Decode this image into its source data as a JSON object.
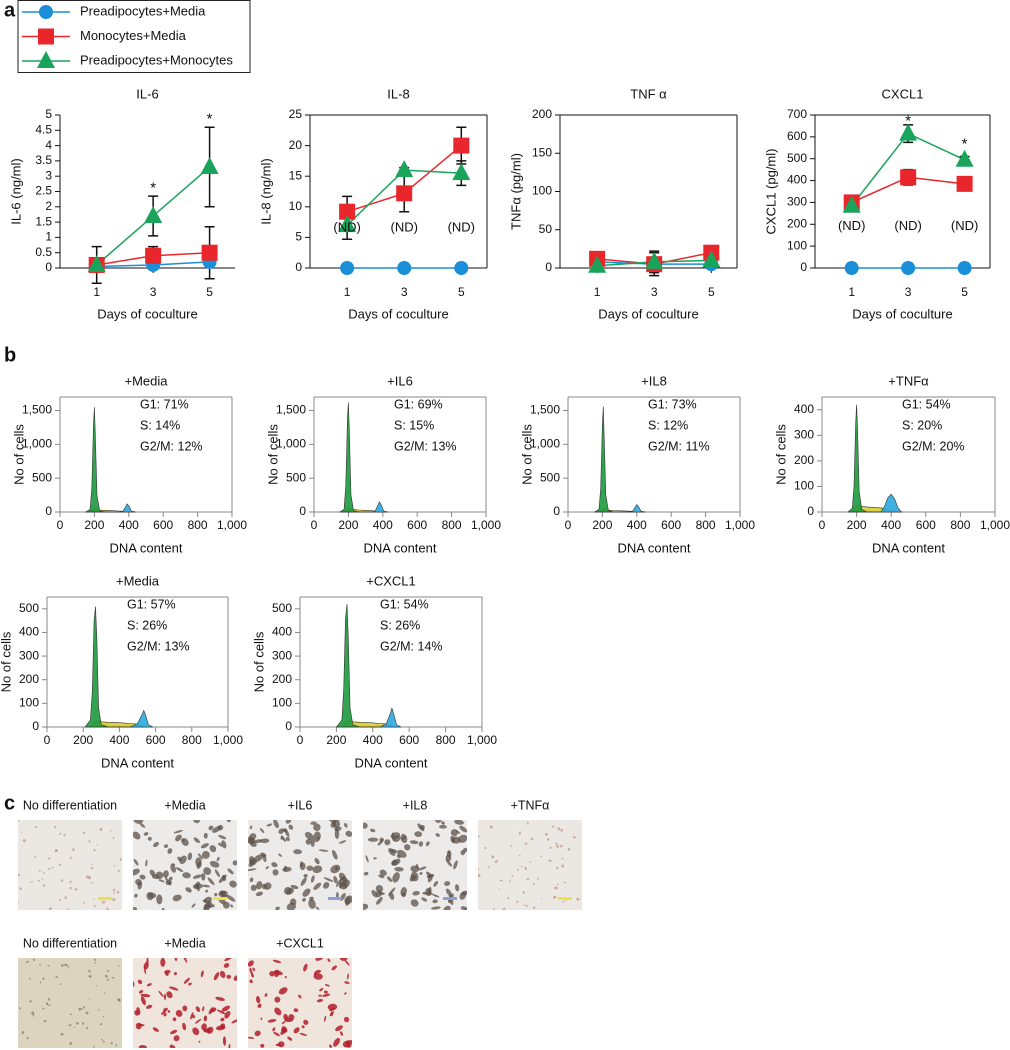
{
  "panels": [
    "a",
    "b",
    "c"
  ],
  "chart_data": [
    {
      "type": "line",
      "title": "IL-6",
      "ylabel": "IL-6 (ng/ml)",
      "xlabel": "Days of coculture",
      "frame": false,
      "x": [
        1,
        3,
        5
      ],
      "xlim": [
        -0.3,
        5.9
      ],
      "xticks": [
        1,
        3,
        5
      ],
      "ylim": [
        0,
        5
      ],
      "yticks": [
        0,
        0.5,
        1,
        1.5,
        2,
        2.5,
        3,
        3.5,
        4,
        4.5,
        5
      ],
      "series": [
        {
          "name": "Preadipocytes+Media",
          "color": "#1b8ed8",
          "marker": "circle",
          "values": [
            0.05,
            0.1,
            0.2
          ]
        },
        {
          "name": "Monocytes+Media",
          "color": "#e8262b",
          "marker": "square",
          "values": [
            0.1,
            0.4,
            0.5
          ],
          "errors": [
            0.6,
            0.3,
            0.85
          ]
        },
        {
          "name": "Preadipocytes+Monocytes",
          "color": "#1aa35a",
          "marker": "triangle",
          "values": [
            0.1,
            1.7,
            3.3
          ],
          "errors": [
            0.1,
            0.65,
            1.3
          ]
        }
      ],
      "annotations": [
        {
          "text": "*",
          "x": 3,
          "y": 2.6
        },
        {
          "text": "*",
          "x": 5,
          "y": 4.85
        }
      ]
    },
    {
      "type": "line",
      "title": "IL-8",
      "ylabel": "IL-8 (ng/ml)",
      "xlabel": "Days of coculture",
      "frame": true,
      "x": [
        1,
        3,
        5
      ],
      "xlim": [
        -0.3,
        5.9
      ],
      "xticks": [
        1,
        3,
        5
      ],
      "ylim": [
        0,
        25
      ],
      "yticks": [
        0,
        5,
        10,
        15,
        20,
        25
      ],
      "series": [
        {
          "name": "Preadipocytes+Media",
          "color": "#1b8ed8",
          "marker": "circle",
          "values": [
            0,
            0,
            0
          ]
        },
        {
          "name": "Monocytes+Media",
          "color": "#e8262b",
          "marker": "square",
          "values": [
            9.2,
            12.2,
            20
          ],
          "errors": [
            2.5,
            3,
            3
          ]
        },
        {
          "name": "Preadipocytes+Monocytes",
          "color": "#1aa35a",
          "marker": "triangle",
          "values": [
            7,
            16,
            15.5
          ],
          "errors": [
            2.3,
            0.4,
            2
          ]
        }
      ],
      "annotations": [
        {
          "text": "(ND)",
          "x": 1,
          "y": 6.5
        },
        {
          "text": "(ND)",
          "x": 3,
          "y": 6.5
        },
        {
          "text": "(ND)",
          "x": 5,
          "y": 6.5
        }
      ]
    },
    {
      "type": "line",
      "title": "TNF α",
      "ylabel": "TNFα (pg/ml)",
      "xlabel": "Days of coculture",
      "frame": true,
      "x": [
        1,
        3,
        5
      ],
      "xlim": [
        -0.3,
        5.9
      ],
      "xticks": [
        1,
        3,
        5
      ],
      "ylim": [
        0,
        200
      ],
      "yticks": [
        0,
        50,
        100,
        150,
        200
      ],
      "series": [
        {
          "name": "Preadipocytes+Media",
          "color": "#1b8ed8",
          "marker": "circle",
          "values": [
            8,
            5,
            5
          ]
        },
        {
          "name": "Monocytes+Media",
          "color": "#e8262b",
          "marker": "square",
          "values": [
            12,
            5,
            20
          ],
          "errors": [
            8,
            15,
            5
          ]
        },
        {
          "name": "Preadipocytes+Monocytes",
          "color": "#1aa35a",
          "marker": "triangle",
          "values": [
            3,
            8,
            10
          ],
          "errors": [
            5,
            14,
            4
          ]
        }
      ]
    },
    {
      "type": "line",
      "title": "CXCL1",
      "ylabel": "CXCL1 (pg/ml)",
      "xlabel": "Days of coculture",
      "frame": true,
      "x": [
        1,
        3,
        5
      ],
      "xlim": [
        -0.3,
        5.9
      ],
      "xticks": [
        1,
        3,
        5
      ],
      "ylim": [
        0,
        700
      ],
      "yticks": [
        0,
        100,
        200,
        300,
        400,
        500,
        600,
        700
      ],
      "series": [
        {
          "name": "Preadipocytes+Media",
          "color": "#1b8ed8",
          "marker": "circle",
          "values": [
            0,
            0,
            0
          ]
        },
        {
          "name": "Monocytes+Media",
          "color": "#e8262b",
          "marker": "square",
          "values": [
            300,
            415,
            385
          ],
          "errors": [
            20,
            35,
            20
          ]
        },
        {
          "name": "Preadipocytes+Monocytes",
          "color": "#1aa35a",
          "marker": "triangle",
          "values": [
            285,
            615,
            495
          ],
          "errors": [
            25,
            40,
            15
          ]
        }
      ],
      "annotations": [
        {
          "text": "(ND)",
          "x": 1,
          "y": 190
        },
        {
          "text": "(ND)",
          "x": 3,
          "y": 190
        },
        {
          "text": "(ND)",
          "x": 5,
          "y": 190
        },
        {
          "text": "*",
          "x": 3,
          "y": 670
        },
        {
          "text": "*",
          "x": 5,
          "y": 565
        }
      ]
    },
    {
      "type": "area",
      "title": "+Media",
      "xlabel": "DNA content",
      "ylabel": "No of cells",
      "stats": [
        "G1: 71%",
        "S: 14%",
        "G2/M: 12%"
      ],
      "xlim": [
        0,
        1000
      ],
      "xticks": [
        0,
        200,
        400,
        600,
        800,
        {
          "value": 1000,
          "label": "1,000"
        }
      ],
      "ylim": [
        0,
        1700
      ],
      "yticks": [
        0,
        500,
        {
          "value": 1000,
          "label": "1,000"
        },
        {
          "value": 1500,
          "label": "1,500"
        }
      ],
      "x": [
        150,
        175,
        185,
        195,
        200,
        205,
        215,
        230,
        260,
        300,
        340,
        365,
        380,
        390,
        400,
        415,
        440
      ],
      "series": [
        {
          "color": "#d8cc2c",
          "values": [
            0,
            0,
            20,
            40,
            45,
            45,
            40,
            30,
            25,
            20,
            15,
            10,
            5,
            0,
            0,
            0,
            0
          ]
        },
        {
          "color": "#1c9a3c",
          "values": [
            0,
            40,
            350,
            1300,
            1550,
            1150,
            250,
            20,
            0,
            0,
            0,
            0,
            0,
            0,
            0,
            0,
            0
          ]
        },
        {
          "color": "#2aa9e0",
          "values": [
            0,
            0,
            0,
            0,
            0,
            0,
            0,
            0,
            0,
            0,
            0,
            10,
            70,
            120,
            90,
            15,
            0
          ]
        }
      ]
    },
    {
      "type": "area",
      "title": "+IL6",
      "xlabel": "DNA content",
      "ylabel": "No of cells",
      "stats": [
        "G1: 69%",
        "S: 15%",
        "G2/M: 13%"
      ],
      "xlim": [
        0,
        1000
      ],
      "xticks": [
        0,
        200,
        400,
        600,
        800,
        {
          "value": 1000,
          "label": "1,000"
        }
      ],
      "ylim": [
        0,
        1700
      ],
      "yticks": [
        0,
        500,
        {
          "value": 1000,
          "label": "1,000"
        },
        {
          "value": 1500,
          "label": "1,500"
        }
      ],
      "x": [
        150,
        175,
        185,
        195,
        200,
        205,
        215,
        230,
        260,
        300,
        330,
        355,
        370,
        380,
        390,
        405,
        430
      ],
      "series": [
        {
          "color": "#d8cc2c",
          "values": [
            0,
            0,
            20,
            40,
            50,
            50,
            45,
            35,
            30,
            25,
            20,
            15,
            8,
            0,
            0,
            0,
            0
          ]
        },
        {
          "color": "#1c9a3c",
          "values": [
            0,
            40,
            400,
            1400,
            1620,
            1200,
            250,
            20,
            0,
            0,
            0,
            0,
            0,
            0,
            0,
            0,
            0
          ]
        },
        {
          "color": "#2aa9e0",
          "values": [
            0,
            0,
            0,
            0,
            0,
            0,
            0,
            0,
            0,
            0,
            0,
            10,
            90,
            150,
            110,
            15,
            0
          ]
        }
      ]
    },
    {
      "type": "area",
      "title": "+IL8",
      "xlabel": "DNA content",
      "ylabel": "No of cells",
      "stats": [
        "G1: 73%",
        "S: 12%",
        "G2/M: 11%"
      ],
      "xlim": [
        0,
        1000
      ],
      "xticks": [
        0,
        200,
        400,
        600,
        800,
        {
          "value": 1000,
          "label": "1,000"
        }
      ],
      "ylim": [
        0,
        1700
      ],
      "yticks": [
        0,
        500,
        {
          "value": 1000,
          "label": "1,000"
        },
        {
          "value": 1500,
          "label": "1,500"
        }
      ],
      "x": [
        155,
        180,
        190,
        200,
        205,
        210,
        220,
        235,
        265,
        305,
        345,
        375,
        390,
        400,
        410,
        425,
        450
      ],
      "series": [
        {
          "color": "#d8cc2c",
          "values": [
            0,
            0,
            20,
            35,
            40,
            40,
            35,
            28,
            22,
            18,
            14,
            10,
            5,
            0,
            0,
            0,
            0
          ]
        },
        {
          "color": "#1c9a3c",
          "values": [
            0,
            40,
            350,
            1300,
            1560,
            1150,
            250,
            20,
            0,
            0,
            0,
            0,
            0,
            0,
            0,
            0,
            0
          ]
        },
        {
          "color": "#2aa9e0",
          "values": [
            0,
            0,
            0,
            0,
            0,
            0,
            0,
            0,
            0,
            0,
            0,
            10,
            70,
            110,
            80,
            12,
            0
          ]
        }
      ]
    },
    {
      "type": "area",
      "title": "+TNFα",
      "xlabel": "DNA content",
      "ylabel": "No of cells",
      "stats": [
        "G1: 54%",
        "S: 20%",
        "G2/M: 20%"
      ],
      "xlim": [
        0,
        1000
      ],
      "xticks": [
        0,
        200,
        400,
        600,
        800,
        {
          "value": 1000,
          "label": "1,000"
        }
      ],
      "ylim": [
        0,
        450
      ],
      "yticks": [
        0,
        100,
        200,
        300,
        400
      ],
      "x": [
        150,
        175,
        185,
        195,
        200,
        205,
        215,
        230,
        260,
        300,
        340,
        360,
        380,
        400,
        420,
        440,
        460
      ],
      "series": [
        {
          "color": "#d8cc2c",
          "values": [
            0,
            0,
            10,
            20,
            25,
            25,
            25,
            22,
            20,
            18,
            16,
            14,
            10,
            5,
            2,
            0,
            0
          ]
        },
        {
          "color": "#1c9a3c",
          "values": [
            0,
            15,
            100,
            350,
            420,
            330,
            80,
            10,
            0,
            0,
            0,
            0,
            0,
            0,
            0,
            0,
            0
          ]
        },
        {
          "color": "#2aa9e0",
          "values": [
            0,
            0,
            0,
            0,
            0,
            0,
            0,
            0,
            0,
            0,
            0,
            20,
            55,
            70,
            50,
            15,
            0
          ]
        }
      ]
    },
    {
      "type": "area",
      "title": "+Media",
      "xlabel": "DNA content",
      "ylabel": "No of cells",
      "stats": [
        "G1: 57%",
        "S: 26%",
        "G2/M: 13%"
      ],
      "xlim": [
        0,
        1000
      ],
      "xticks": [
        0,
        200,
        400,
        600,
        800,
        {
          "value": 1000,
          "label": "1,000"
        }
      ],
      "ylim": [
        0,
        550
      ],
      "yticks": [
        0,
        100,
        200,
        300,
        400,
        500
      ],
      "x": [
        210,
        240,
        250,
        260,
        268,
        275,
        285,
        300,
        340,
        400,
        460,
        500,
        520,
        535,
        545,
        560,
        585
      ],
      "series": [
        {
          "color": "#d8cc2c",
          "values": [
            0,
            0,
            10,
            20,
            25,
            25,
            25,
            22,
            20,
            18,
            15,
            12,
            8,
            4,
            0,
            0,
            0
          ]
        },
        {
          "color": "#1c9a3c",
          "values": [
            0,
            30,
            150,
            450,
            510,
            380,
            80,
            10,
            0,
            0,
            0,
            0,
            0,
            0,
            0,
            0,
            0
          ]
        },
        {
          "color": "#2aa9e0",
          "values": [
            0,
            0,
            0,
            0,
            0,
            0,
            0,
            0,
            0,
            0,
            0,
            15,
            45,
            70,
            50,
            10,
            0
          ]
        }
      ]
    },
    {
      "type": "area",
      "title": "+CXCL1",
      "xlabel": "DNA content",
      "ylabel": "No of cells",
      "stats": [
        "G1: 54%",
        "S: 26%",
        "G2/M: 14%"
      ],
      "xlim": [
        0,
        1000
      ],
      "xticks": [
        0,
        200,
        400,
        600,
        800,
        {
          "value": 1000,
          "label": "1,000"
        }
      ],
      "ylim": [
        0,
        550
      ],
      "yticks": [
        0,
        100,
        200,
        300,
        400,
        500
      ],
      "x": [
        200,
        230,
        240,
        250,
        258,
        265,
        275,
        290,
        330,
        390,
        440,
        475,
        495,
        505,
        515,
        530,
        555
      ],
      "series": [
        {
          "color": "#d8cc2c",
          "values": [
            0,
            0,
            10,
            20,
            25,
            25,
            25,
            22,
            20,
            18,
            15,
            12,
            8,
            4,
            0,
            0,
            0
          ]
        },
        {
          "color": "#1c9a3c",
          "values": [
            0,
            30,
            160,
            460,
            520,
            390,
            80,
            10,
            0,
            0,
            0,
            0,
            0,
            0,
            0,
            0,
            0
          ]
        },
        {
          "color": "#2aa9e0",
          "values": [
            0,
            0,
            0,
            0,
            0,
            0,
            0,
            0,
            0,
            0,
            0,
            15,
            55,
            80,
            55,
            10,
            0
          ]
        }
      ]
    }
  ],
  "images": [
    {
      "label": "No differentiation"
    },
    {
      "label": "+Media"
    },
    {
      "label": "+IL6"
    },
    {
      "label": "+IL8"
    },
    {
      "label": "+TNFα"
    },
    {
      "label": "No differentiation"
    },
    {
      "label": "+Media"
    },
    {
      "label": "+CXCL1"
    }
  ]
}
